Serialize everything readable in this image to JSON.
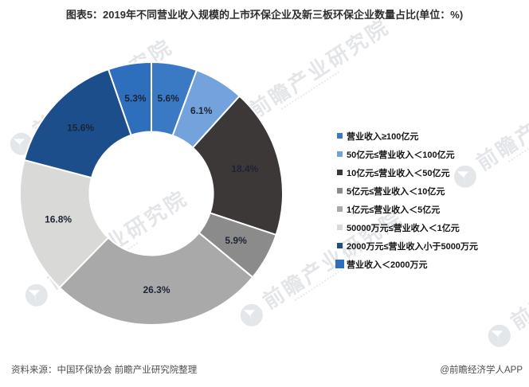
{
  "chart_data": {
    "type": "pie",
    "subtype": "donut",
    "title": "图表5：2019年不同营业收入规模的上市环保企业及新三板环保企业数量占比(单位：%)",
    "unit": "%",
    "start_angle_deg": 0,
    "direction": "clockwise",
    "inner_radius_ratio": 0.47,
    "data_labels": "percent",
    "legend_position": "right",
    "series": [
      {
        "label": "营业收入≥100亿元",
        "value": 5.6,
        "color": "#3a7ac4"
      },
      {
        "label": "50亿元≤营业收入＜100亿元",
        "value": 6.1,
        "color": "#74a2dc"
      },
      {
        "label": "10亿元≤营业收入＜50亿元",
        "value": 18.4,
        "color": "#3c3838"
      },
      {
        "label": "5亿元≤营业收入＜10亿元",
        "value": 5.9,
        "color": "#8b8b8b"
      },
      {
        "label": "1亿元≤营业收入＜5亿元",
        "value": 26.3,
        "color": "#a9a9a9"
      },
      {
        "label": "50000万元≤营业收入＜1亿元",
        "value": 16.8,
        "color": "#d9d9d8"
      },
      {
        "label": "2000万元≤营业收入小于5000万元",
        "value": 15.6,
        "color": "#1d4e8c"
      },
      {
        "label": "营业收入＜2000万元",
        "value": 5.3,
        "color": "#2e6fbd"
      }
    ]
  },
  "footer": {
    "source": "资料来源：中国环保协会 前瞻产业研究院整理",
    "credit": "@前瞻经济学人APP"
  },
  "watermark": {
    "text": "前瞻产业研究院"
  }
}
